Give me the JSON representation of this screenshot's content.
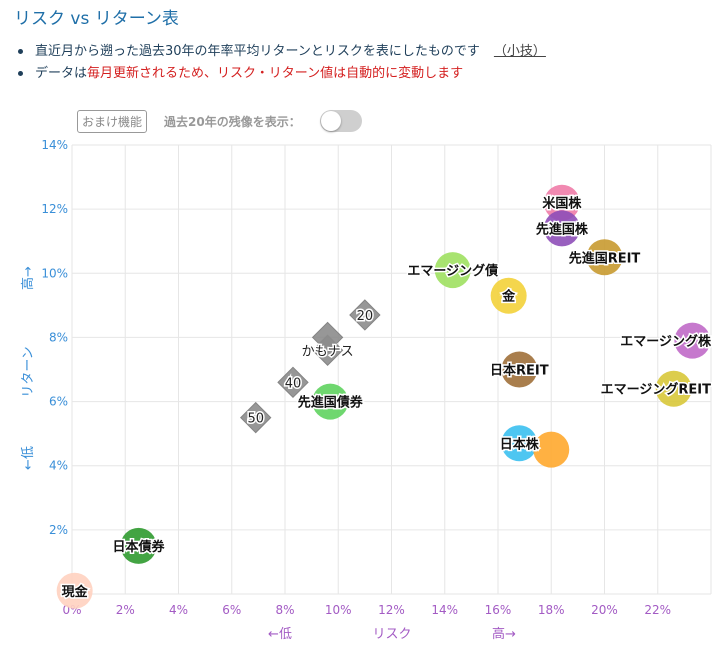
{
  "page": {
    "title": "リスク vs リターン表",
    "notes": [
      {
        "text": "直近月から遡った過去30年の年率平均リターンとリスクを表にしたものです",
        "link": "（小技）"
      },
      {
        "pre": "データは",
        "red1": "毎月更新されるため、リスク・リターン値は自動的に変動します"
      }
    ],
    "bonus_badge": "おまけ機能",
    "toggle_label": "過去20年の残像を表示：",
    "toggle_on": false
  },
  "chart_data": {
    "type": "scatter",
    "xlabel": "リスク",
    "xlabel_low": "←低",
    "xlabel_high": "高→",
    "ylabel": "リターン",
    "ylabel_low": "←低",
    "ylabel_high": "高→",
    "xlim": [
      0,
      24
    ],
    "ylim": [
      0,
      14
    ],
    "x_ticks": [
      "0%",
      "2%",
      "4%",
      "6%",
      "8%",
      "10%",
      "12%",
      "14%",
      "16%",
      "18%",
      "20%",
      "22%"
    ],
    "y_ticks": [
      "2%",
      "4%",
      "6%",
      "8%",
      "10%",
      "12%",
      "14%"
    ],
    "grid": true,
    "points": [
      {
        "label": "米国株",
        "x": 18.4,
        "y": 12.2,
        "color": "#f07ca8"
      },
      {
        "label": "先進国株",
        "x": 18.4,
        "y": 11.4,
        "color": "#8e4fb8"
      },
      {
        "label": "先進国REIT",
        "x": 20.0,
        "y": 10.5,
        "color": "#c89a30"
      },
      {
        "label": "エマージング債",
        "x": 14.3,
        "y": 10.1,
        "color": "#9ee060"
      },
      {
        "label": "金",
        "x": 16.4,
        "y": 9.3,
        "color": "#f3d23a"
      },
      {
        "label": "エマージング株",
        "x": 23.3,
        "y": 7.9,
        "color": "#c06ac8"
      },
      {
        "label": "日本REIT",
        "x": 16.8,
        "y": 7.0,
        "color": "#a0703a"
      },
      {
        "label": "エマージングREIT",
        "x": 22.6,
        "y": 6.4,
        "color": "#d8c83a"
      },
      {
        "label": "先進国債券",
        "x": 9.7,
        "y": 6.0,
        "color": "#5fd35f"
      },
      {
        "label": "日本株",
        "x": 16.8,
        "y": 4.7,
        "color": "#3bc0f0"
      },
      {
        "label": "",
        "x": 18.0,
        "y": 4.5,
        "color": "#ffa92e"
      },
      {
        "label": "日本債券",
        "x": 2.5,
        "y": 1.5,
        "color": "#2f9a2f"
      },
      {
        "label": "現金",
        "x": 0.1,
        "y": 0.1,
        "color": "#ffd2c0"
      }
    ],
    "portfolio_points": [
      {
        "label": "20",
        "x": 11.0,
        "y": 8.7
      },
      {
        "label": "かもナス",
        "x": 9.6,
        "y": 7.6
      },
      {
        "label": "",
        "x": 9.6,
        "y": 8.0
      },
      {
        "label": "40",
        "x": 8.3,
        "y": 6.6
      },
      {
        "label": "50",
        "x": 6.9,
        "y": 5.5
      }
    ]
  }
}
